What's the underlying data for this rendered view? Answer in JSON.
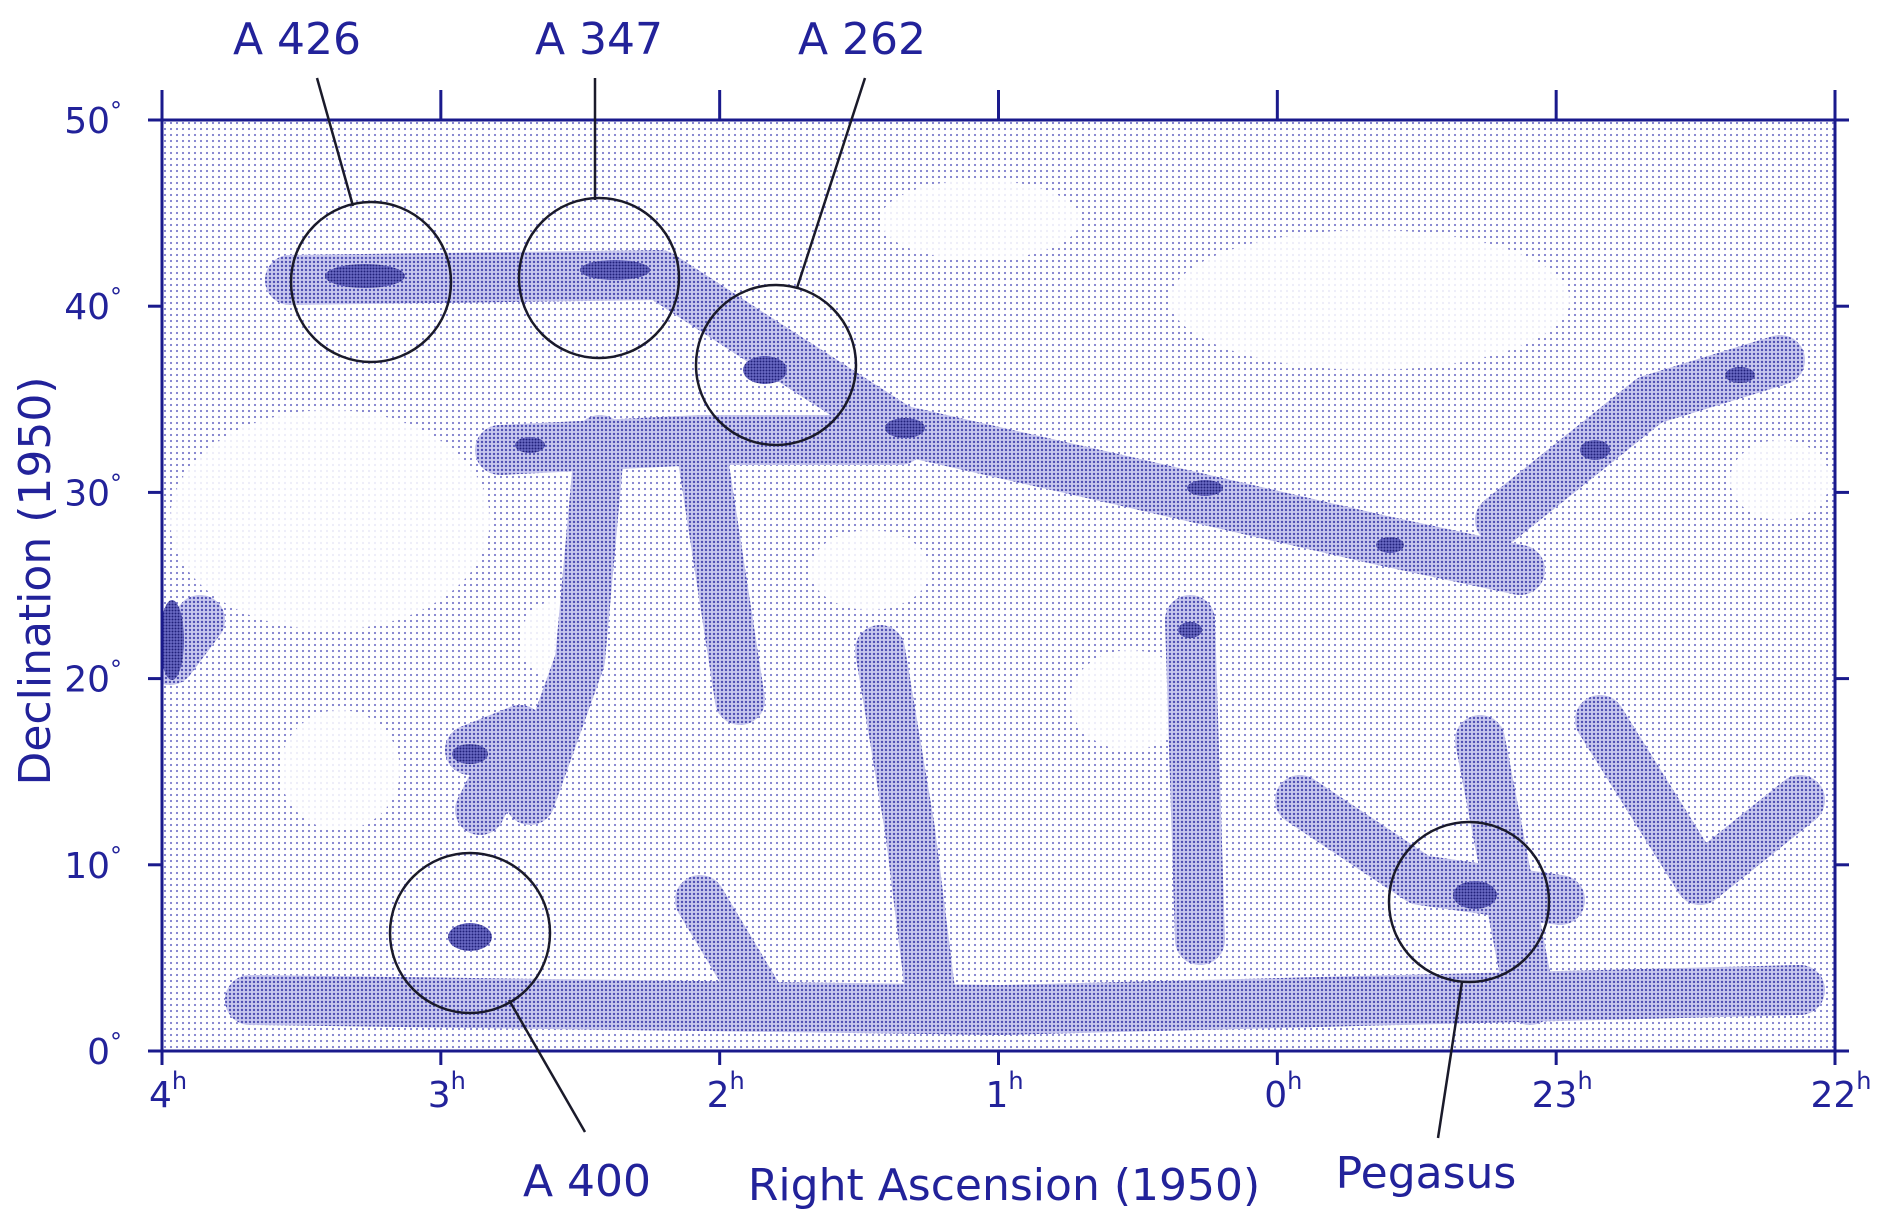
{
  "x_axis": {
    "title": "Right Ascension (1950)",
    "ticks": [
      4,
      3,
      2,
      1,
      0,
      23,
      22
    ],
    "unit": "h"
  },
  "y_axis": {
    "title": "Declination (1950)",
    "ticks": [
      50,
      40,
      30,
      20,
      10,
      0
    ],
    "unit": "°"
  },
  "labels": [
    "A 426",
    "A 347",
    "A 262",
    "A 400",
    "Pegasus"
  ]
}
